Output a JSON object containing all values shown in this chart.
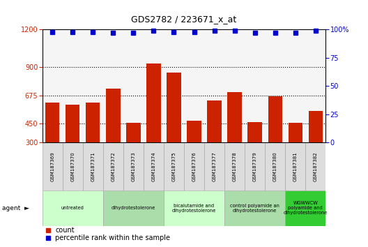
{
  "title": "GDS2782 / 223671_x_at",
  "samples": [
    "GSM187369",
    "GSM187370",
    "GSM187371",
    "GSM187372",
    "GSM187373",
    "GSM187374",
    "GSM187375",
    "GSM187376",
    "GSM187377",
    "GSM187378",
    "GSM187379",
    "GSM187380",
    "GSM187381",
    "GSM187382"
  ],
  "counts": [
    620,
    600,
    620,
    730,
    455,
    930,
    855,
    470,
    635,
    700,
    460,
    670,
    455,
    550
  ],
  "percentile_ranks": [
    98,
    98,
    98,
    97,
    97,
    99,
    98,
    98,
    99,
    99,
    97,
    97,
    97,
    99
  ],
  "bar_color": "#cc2200",
  "dot_color": "#0000cc",
  "ymin": 300,
  "ymax": 1200,
  "yticks": [
    300,
    450,
    675,
    900,
    1200
  ],
  "right_yticks": [
    0,
    25,
    50,
    75,
    100
  ],
  "group_boundaries": [
    {
      "start": 0,
      "end": 2,
      "label": "untreated",
      "color": "#ccffcc"
    },
    {
      "start": 3,
      "end": 5,
      "label": "dihydrotestolerone",
      "color": "#aaddaa"
    },
    {
      "start": 6,
      "end": 8,
      "label": "bicalutamide and\ndihydrotestolerone",
      "color": "#ccffcc"
    },
    {
      "start": 9,
      "end": 11,
      "label": "control polyamide an\ndihydrotestolerone",
      "color": "#aaddaa"
    },
    {
      "start": 12,
      "end": 13,
      "label": "WGWWCW\npolyamide and\ndihydrotestolerone",
      "color": "#33cc33"
    }
  ],
  "bg_color": "#f5f5f5",
  "legend_count_label": "count",
  "legend_pct_label": "percentile rank within the sample"
}
